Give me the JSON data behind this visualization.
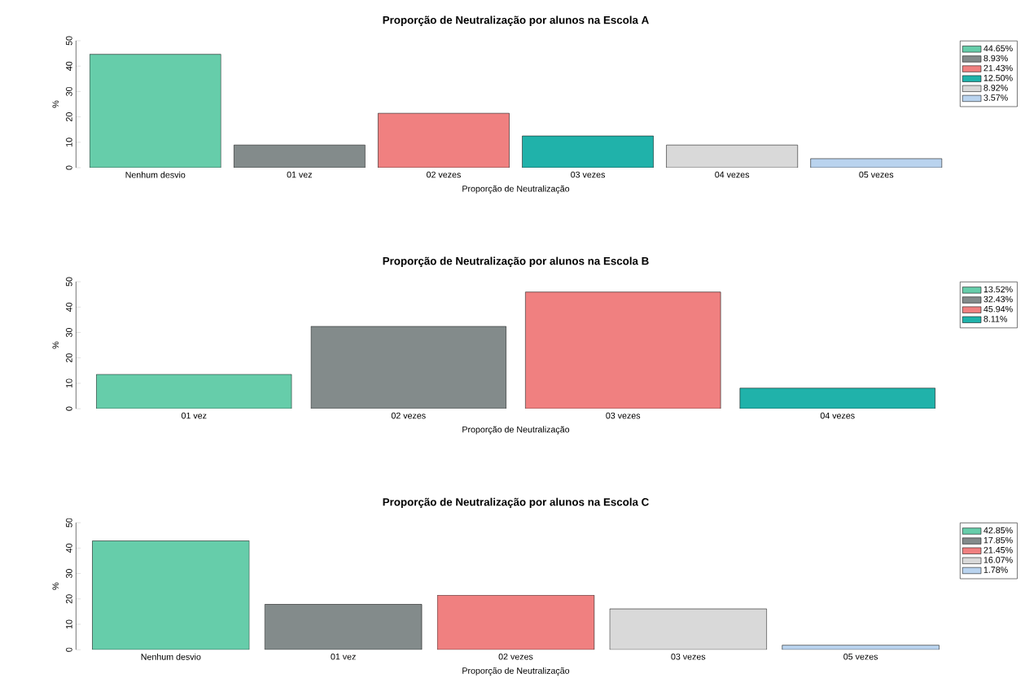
{
  "chart_data": [
    {
      "type": "bar",
      "title": "Proporção de Neutralização por alunos na Escola A",
      "xlabel": "Proporção de Neutralização",
      "ylabel": "%",
      "categories": [
        "Nenhum desvio",
        "01 vez",
        "02 vezes",
        "03 vezes",
        "04 vezes",
        "05 vezes"
      ],
      "ylim": [
        0,
        50
      ],
      "yticks": [
        0,
        10,
        20,
        30,
        40,
        50
      ],
      "grid": false,
      "legend": "top right",
      "series": [
        {
          "name": "44.65%",
          "color": "#66cdaa",
          "values": [
            44.65,
            null,
            null,
            null,
            null,
            null
          ]
        },
        {
          "name": "8.93%",
          "color": "#838b8b",
          "values": [
            null,
            8.93,
            null,
            null,
            null,
            null
          ]
        },
        {
          "name": "21.43%",
          "color": "#f08080",
          "values": [
            null,
            null,
            21.43,
            null,
            null,
            null
          ]
        },
        {
          "name": "12.50%",
          "color": "#20b2aa",
          "values": [
            null,
            null,
            null,
            12.5,
            null,
            null
          ]
        },
        {
          "name": "8.92%",
          "color": "#d9d9d9",
          "values": [
            null,
            null,
            null,
            null,
            8.92,
            null
          ]
        },
        {
          "name": "3.57%",
          "color": "#b9d3ee",
          "values": [
            null,
            null,
            null,
            null,
            null,
            3.57
          ]
        }
      ]
    },
    {
      "type": "bar",
      "title": "Proporção de Neutralização por alunos na Escola B",
      "xlabel": "Proporção de Neutralização",
      "ylabel": "%",
      "categories": [
        "01 vez",
        "02 vezes",
        "03 vezes",
        "04 vezes"
      ],
      "ylim": [
        0,
        50
      ],
      "yticks": [
        0,
        10,
        20,
        30,
        40,
        50
      ],
      "grid": false,
      "legend": "top right",
      "series": [
        {
          "name": "13.52%",
          "color": "#66cdaa",
          "values": [
            13.52,
            null,
            null,
            null
          ]
        },
        {
          "name": "32.43%",
          "color": "#838b8b",
          "values": [
            null,
            32.43,
            null,
            null
          ]
        },
        {
          "name": "45.94%",
          "color": "#f08080",
          "values": [
            null,
            null,
            45.94,
            null
          ]
        },
        {
          "name": "8.11%",
          "color": "#20b2aa",
          "values": [
            null,
            null,
            null,
            8.11
          ]
        }
      ]
    },
    {
      "type": "bar",
      "title": "Proporção de Neutralização por alunos na Escola C",
      "xlabel": "Proporção de Neutralização",
      "ylabel": "%",
      "categories": [
        "Nenhum desvio",
        "01 vez",
        "02 vezes",
        "03 vezes",
        "05 vezes"
      ],
      "ylim": [
        0,
        50
      ],
      "yticks": [
        0,
        10,
        20,
        30,
        40,
        50
      ],
      "grid": false,
      "legend": "top right",
      "series": [
        {
          "name": "42.85%",
          "color": "#66cdaa",
          "values": [
            42.85,
            null,
            null,
            null,
            null
          ]
        },
        {
          "name": "17.85%",
          "color": "#838b8b",
          "values": [
            null,
            17.85,
            null,
            null,
            null
          ]
        },
        {
          "name": "21.45%",
          "color": "#f08080",
          "values": [
            null,
            null,
            21.45,
            null,
            null
          ]
        },
        {
          "name": "16.07%",
          "color": "#d9d9d9",
          "values": [
            null,
            null,
            null,
            16.07,
            null
          ]
        },
        {
          "name": "1.78%",
          "color": "#b9d3ee",
          "values": [
            null,
            null,
            null,
            null,
            1.78
          ]
        }
      ]
    }
  ]
}
